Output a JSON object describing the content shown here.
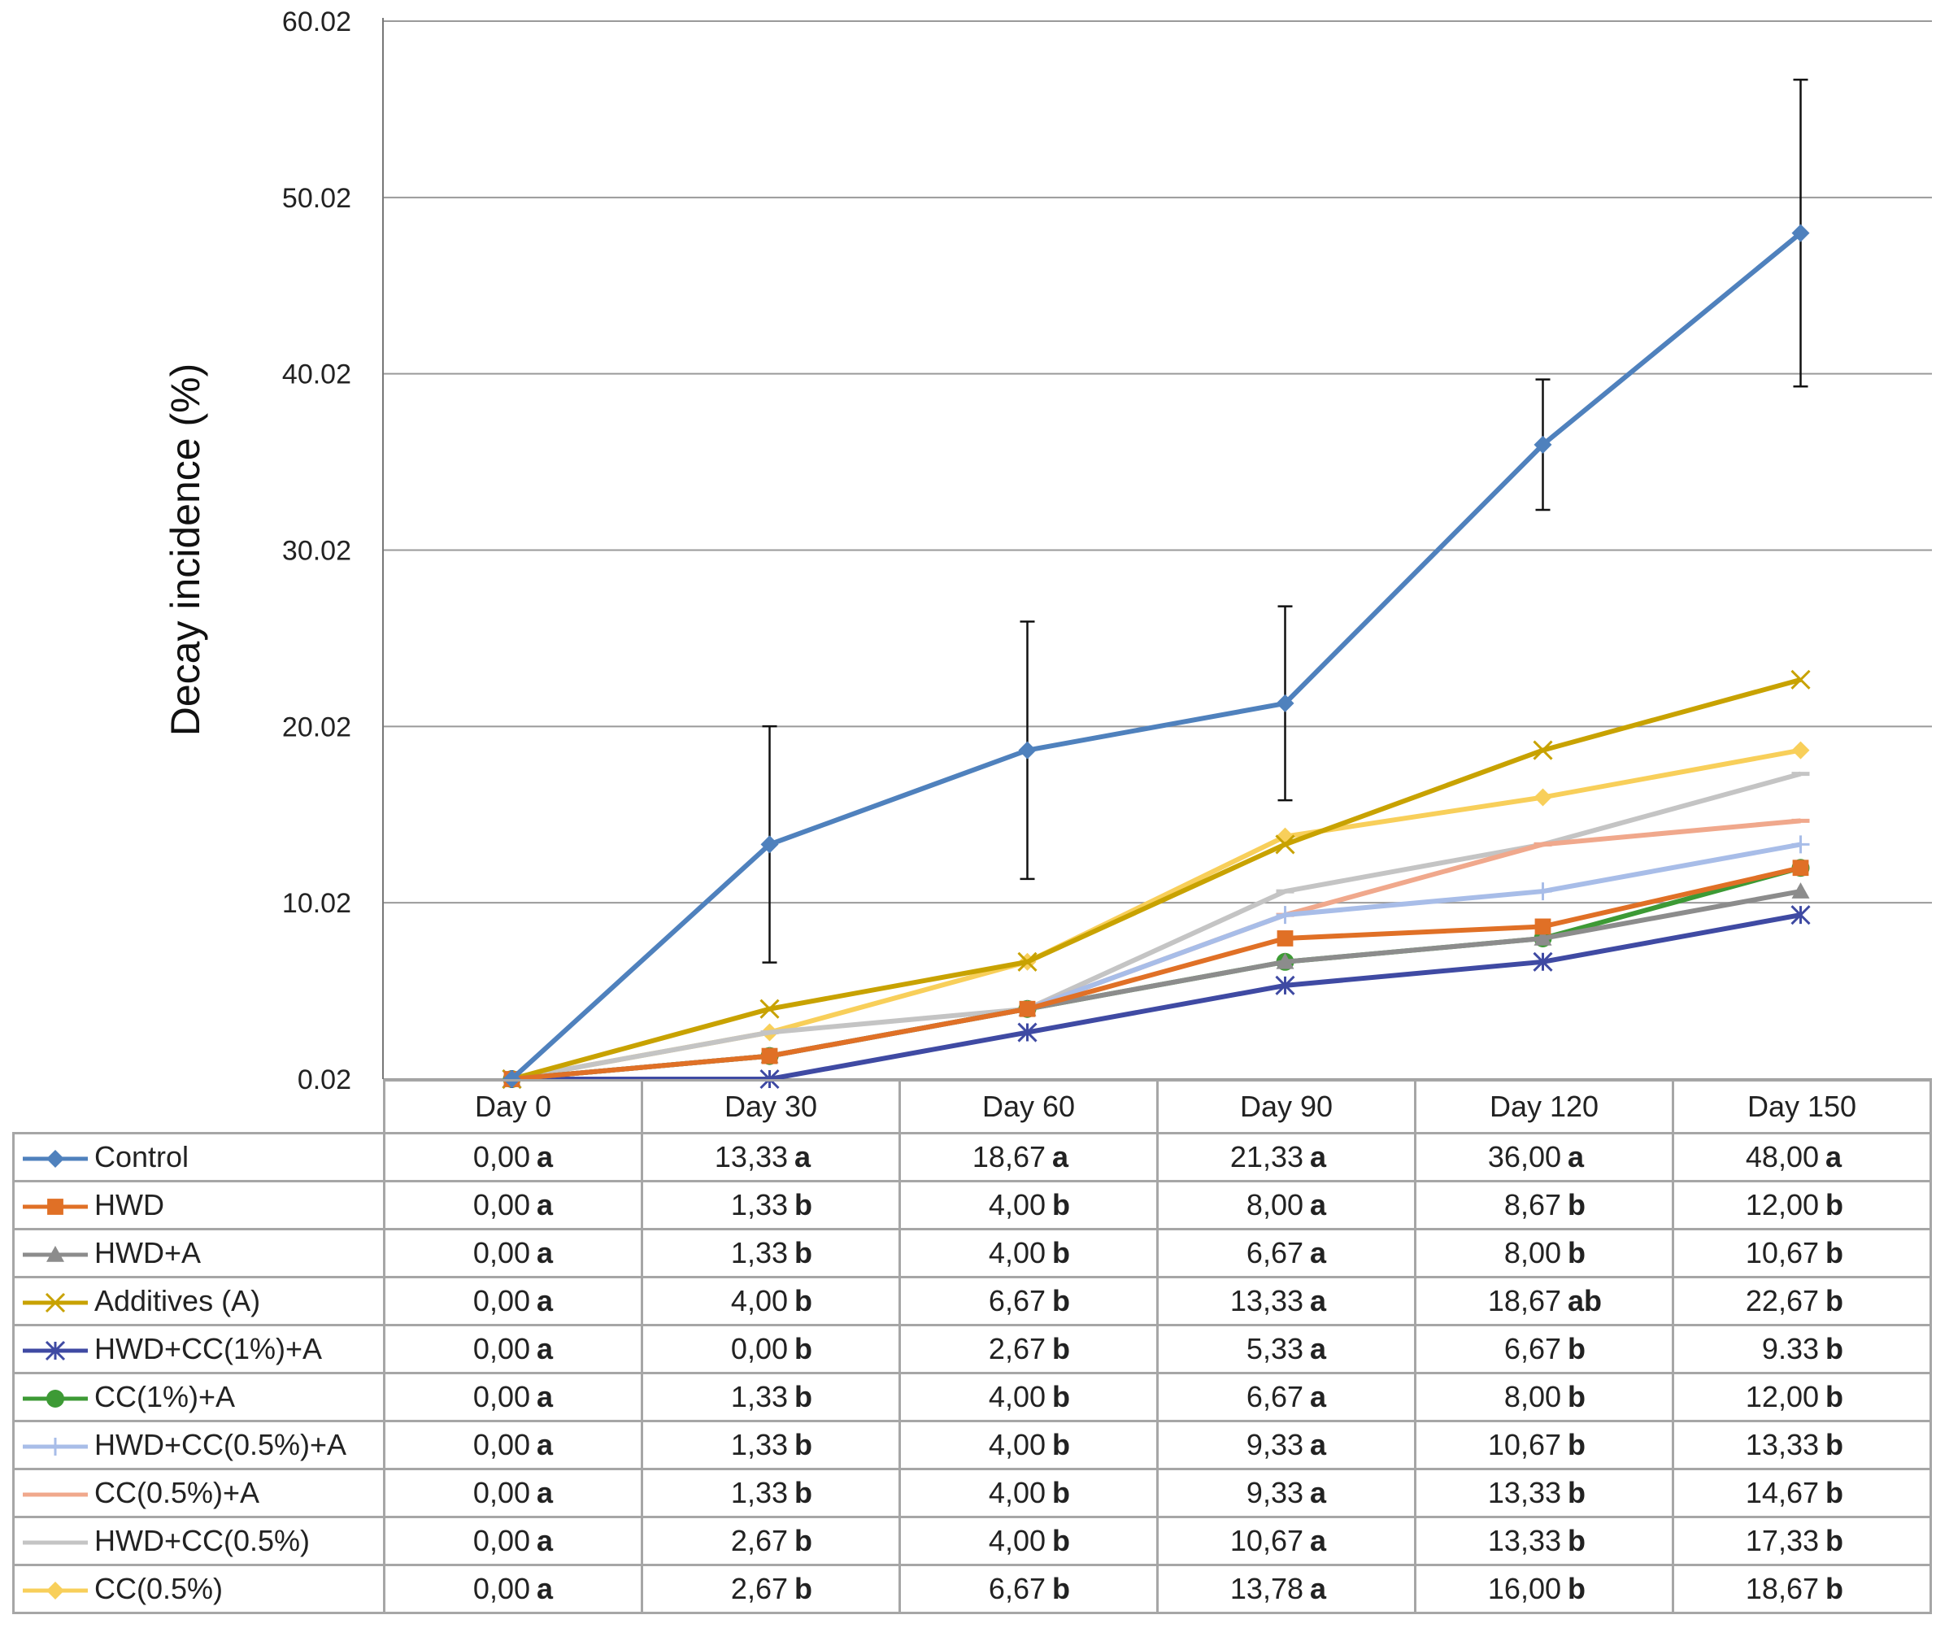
{
  "chart_data": {
    "type": "line",
    "title": "",
    "xlabel": "",
    "ylabel": "Decay incidence (%)",
    "ylim": [
      0.02,
      60.02
    ],
    "yticks": [
      "0.02",
      "10.02",
      "20.02",
      "30.02",
      "40.02",
      "50.02",
      "60.02"
    ],
    "categories": [
      "Day 0",
      "Day 30",
      "Day 60",
      "Day 90",
      "Day 120",
      "Day 150"
    ],
    "grid": "horizontal",
    "legend": "table-rows-below",
    "series": [
      {
        "name": "Control",
        "color": "#4f81bd",
        "marker": "diamond",
        "values": [
          0,
          13.33,
          18.67,
          21.33,
          36.0,
          48.0
        ],
        "error": [
          0,
          6.7,
          7.3,
          5.5,
          3.7,
          8.7
        ]
      },
      {
        "name": "HWD",
        "color": "#e07026",
        "marker": "square",
        "values": [
          0,
          1.33,
          4.0,
          8.0,
          8.67,
          12.0
        ]
      },
      {
        "name": "HWD+A",
        "color": "#8c8c8c",
        "marker": "triangle",
        "values": [
          0,
          1.33,
          4.0,
          6.67,
          8.0,
          10.67
        ]
      },
      {
        "name": "Additives (A)",
        "color": "#c8a200",
        "marker": "x",
        "values": [
          0,
          4.0,
          6.67,
          13.33,
          18.67,
          22.67
        ]
      },
      {
        "name": "HWD+CC(1%)+A",
        "color": "#3f4aa3",
        "marker": "asterisk",
        "values": [
          0,
          0.0,
          2.67,
          5.33,
          6.67,
          9.33
        ]
      },
      {
        "name": "CC(1%)+A",
        "color": "#3d9a35",
        "marker": "circle",
        "values": [
          0,
          1.33,
          4.0,
          6.67,
          8.0,
          12.0
        ]
      },
      {
        "name": "HWD+CC(0.5%)+A",
        "color": "#a8bde8",
        "marker": "plus",
        "values": [
          0,
          1.33,
          4.0,
          9.33,
          10.67,
          13.33
        ]
      },
      {
        "name": "CC(0.5%)+A",
        "color": "#f0a88c",
        "marker": "dash",
        "values": [
          0,
          1.33,
          4.0,
          9.33,
          13.33,
          14.67
        ]
      },
      {
        "name": "HWD+CC(0.5%)",
        "color": "#c4c4c4",
        "marker": "dash",
        "values": [
          0,
          2.67,
          4.0,
          10.67,
          13.33,
          17.33
        ]
      },
      {
        "name": "CC(0.5%)",
        "color": "#f8cf5a",
        "marker": "diamond",
        "values": [
          0,
          2.67,
          6.67,
          13.78,
          16.0,
          18.67
        ]
      }
    ]
  },
  "table": {
    "headers": [
      "Day 0",
      "Day 30",
      "Day 60",
      "Day 90",
      "Day 120",
      "Day 150"
    ],
    "rows": [
      {
        "label": "Control",
        "cells": [
          [
            "0,00",
            "a"
          ],
          [
            "13,33",
            "a"
          ],
          [
            "18,67",
            "a"
          ],
          [
            "21,33",
            "a"
          ],
          [
            "36,00",
            "a"
          ],
          [
            "48,00",
            "a"
          ]
        ]
      },
      {
        "label": "HWD",
        "cells": [
          [
            "0,00",
            "a"
          ],
          [
            "1,33",
            "b"
          ],
          [
            "4,00",
            "b"
          ],
          [
            "8,00",
            "a"
          ],
          [
            "8,67",
            "b"
          ],
          [
            "12,00",
            "b"
          ]
        ]
      },
      {
        "label": "HWD+A",
        "cells": [
          [
            "0,00",
            "a"
          ],
          [
            "1,33",
            "b"
          ],
          [
            "4,00",
            "b"
          ],
          [
            "6,67",
            "a"
          ],
          [
            "8,00",
            "b"
          ],
          [
            "10,67",
            "b"
          ]
        ]
      },
      {
        "label": "Additives (A)",
        "cells": [
          [
            "0,00",
            "a"
          ],
          [
            "4,00",
            "b"
          ],
          [
            "6,67",
            "b"
          ],
          [
            "13,33",
            "a"
          ],
          [
            "18,67",
            "ab"
          ],
          [
            "22,67",
            "b"
          ]
        ]
      },
      {
        "label": "HWD+CC(1%)+A",
        "cells": [
          [
            "0,00",
            "a"
          ],
          [
            "0,00",
            "b"
          ],
          [
            "2,67",
            "b"
          ],
          [
            "5,33",
            "a"
          ],
          [
            "6,67",
            "b"
          ],
          [
            "9.33",
            "b"
          ]
        ]
      },
      {
        "label": "CC(1%)+A",
        "cells": [
          [
            "0,00",
            "a"
          ],
          [
            "1,33",
            "b"
          ],
          [
            "4,00",
            "b"
          ],
          [
            "6,67",
            "a"
          ],
          [
            "8,00",
            "b"
          ],
          [
            "12,00",
            "b"
          ]
        ]
      },
      {
        "label": "HWD+CC(0.5%)+A",
        "cells": [
          [
            "0,00",
            "a"
          ],
          [
            "1,33",
            "b"
          ],
          [
            "4,00",
            "b"
          ],
          [
            "9,33",
            "a"
          ],
          [
            "10,67",
            "b"
          ],
          [
            "13,33",
            "b"
          ]
        ]
      },
      {
        "label": "CC(0.5%)+A",
        "cells": [
          [
            "0,00",
            "a"
          ],
          [
            "1,33",
            "b"
          ],
          [
            "4,00",
            "b"
          ],
          [
            "9,33",
            "a"
          ],
          [
            "13,33",
            "b"
          ],
          [
            "14,67",
            "b"
          ]
        ]
      },
      {
        "label": "HWD+CC(0.5%)",
        "cells": [
          [
            "0,00",
            "a"
          ],
          [
            "2,67",
            "b"
          ],
          [
            "4,00",
            "b"
          ],
          [
            "10,67",
            "a"
          ],
          [
            "13,33",
            "b"
          ],
          [
            "17,33",
            "b"
          ]
        ]
      },
      {
        "label": "CC(0.5%)",
        "cells": [
          [
            "0,00",
            "a"
          ],
          [
            "2,67",
            "b"
          ],
          [
            "6,67",
            "b"
          ],
          [
            "13,78",
            "a"
          ],
          [
            "16,00",
            "b"
          ],
          [
            "18,67",
            "b"
          ]
        ]
      }
    ]
  }
}
